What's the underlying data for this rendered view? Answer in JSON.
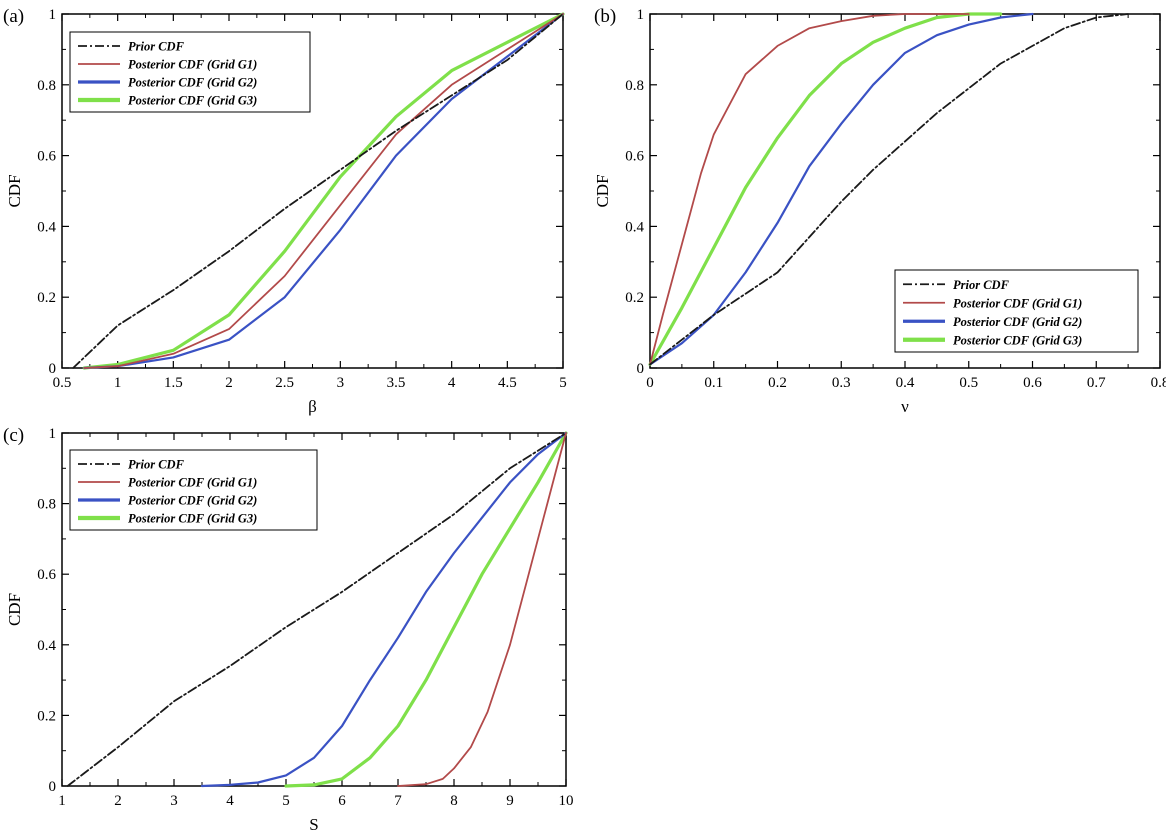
{
  "chart_data": [
    {
      "type": "line",
      "panel_label": "(a)",
      "title": "",
      "xlabel": "β",
      "ylabel": "CDF",
      "xlim": [
        0.5,
        5
      ],
      "ylim": [
        0,
        1
      ],
      "xticks": [
        "0.5",
        "1",
        "1.5",
        "2",
        "2.5",
        "3",
        "3.5",
        "4",
        "4.5",
        "5"
      ],
      "yticks": [
        "0",
        "0.2",
        "0.4",
        "0.6",
        "0.8",
        "1"
      ],
      "grid": false,
      "legend_position": "top-left",
      "series": [
        {
          "name": "Prior CDF",
          "x": [
            0.6,
            1.0,
            1.5,
            2.0,
            2.5,
            3.0,
            3.5,
            4.0,
            4.5,
            5.0
          ],
          "y": [
            0.0,
            0.12,
            0.22,
            0.33,
            0.45,
            0.56,
            0.67,
            0.77,
            0.87,
            1.0
          ]
        },
        {
          "name": "Posterior CDF (Grid G1)",
          "x": [
            0.7,
            1.0,
            1.5,
            2.0,
            2.5,
            3.0,
            3.5,
            4.0,
            4.5,
            5.0
          ],
          "y": [
            0.0,
            0.005,
            0.04,
            0.11,
            0.26,
            0.46,
            0.66,
            0.8,
            0.9,
            1.0
          ]
        },
        {
          "name": "Posterior CDF (Grid G2)",
          "x": [
            0.7,
            1.0,
            1.5,
            2.0,
            2.5,
            3.0,
            3.5,
            4.0,
            4.5,
            5.0
          ],
          "y": [
            0.0,
            0.005,
            0.03,
            0.08,
            0.2,
            0.39,
            0.6,
            0.76,
            0.88,
            1.0
          ]
        },
        {
          "name": "Posterior CDF (Grid G3)",
          "x": [
            0.7,
            1.0,
            1.5,
            2.0,
            2.5,
            3.0,
            3.5,
            4.0,
            4.5,
            5.0
          ],
          "y": [
            0.0,
            0.01,
            0.05,
            0.15,
            0.33,
            0.54,
            0.71,
            0.84,
            0.92,
            1.0
          ]
        }
      ]
    },
    {
      "type": "line",
      "panel_label": "(b)",
      "title": "",
      "xlabel": "ν",
      "ylabel": "CDF",
      "xlim": [
        0,
        0.8
      ],
      "ylim": [
        0,
        1
      ],
      "xticks": [
        "0",
        "0.1",
        "0.2",
        "0.3",
        "0.4",
        "0.5",
        "0.6",
        "0.7",
        "0.8"
      ],
      "yticks": [
        "0",
        "0.2",
        "0.4",
        "0.6",
        "0.8",
        "1"
      ],
      "grid": false,
      "legend_position": "bottom-right",
      "series": [
        {
          "name": "Prior CDF",
          "x": [
            0.0,
            0.05,
            0.1,
            0.15,
            0.2,
            0.25,
            0.3,
            0.35,
            0.4,
            0.45,
            0.5,
            0.55,
            0.6,
            0.65,
            0.7,
            0.75
          ],
          "y": [
            0.01,
            0.08,
            0.15,
            0.21,
            0.27,
            0.37,
            0.47,
            0.56,
            0.64,
            0.72,
            0.79,
            0.86,
            0.91,
            0.96,
            0.99,
            1.0
          ]
        },
        {
          "name": "Posterior CDF (Grid G1)",
          "x": [
            0.0,
            0.02,
            0.05,
            0.08,
            0.1,
            0.15,
            0.2,
            0.25,
            0.3,
            0.35,
            0.4,
            0.45,
            0.5
          ],
          "y": [
            0.01,
            0.15,
            0.35,
            0.55,
            0.66,
            0.83,
            0.91,
            0.96,
            0.98,
            0.995,
            1.0,
            1.0,
            1.0
          ]
        },
        {
          "name": "Posterior CDF (Grid G2)",
          "x": [
            0.0,
            0.05,
            0.1,
            0.15,
            0.2,
            0.25,
            0.3,
            0.35,
            0.4,
            0.45,
            0.5,
            0.55,
            0.6
          ],
          "y": [
            0.01,
            0.07,
            0.15,
            0.27,
            0.41,
            0.57,
            0.69,
            0.8,
            0.89,
            0.94,
            0.97,
            0.99,
            1.0
          ]
        },
        {
          "name": "Posterior CDF (Grid G3)",
          "x": [
            0.0,
            0.05,
            0.1,
            0.15,
            0.2,
            0.25,
            0.3,
            0.35,
            0.4,
            0.45,
            0.5,
            0.55
          ],
          "y": [
            0.01,
            0.17,
            0.34,
            0.51,
            0.65,
            0.77,
            0.86,
            0.92,
            0.96,
            0.99,
            1.0,
            1.0
          ]
        }
      ]
    },
    {
      "type": "line",
      "panel_label": "(c)",
      "title": "",
      "xlabel": "S",
      "ylabel": "CDF",
      "xlim": [
        1,
        10
      ],
      "ylim": [
        0,
        1
      ],
      "xticks": [
        "1",
        "2",
        "3",
        "4",
        "5",
        "6",
        "7",
        "8",
        "9",
        "10"
      ],
      "yticks": [
        "0",
        "0.2",
        "0.4",
        "0.6",
        "0.8",
        "1"
      ],
      "grid": false,
      "legend_position": "top-left",
      "series": [
        {
          "name": "Prior CDF",
          "x": [
            1.1,
            2.0,
            3.0,
            4.0,
            5.0,
            6.0,
            7.0,
            8.0,
            9.0,
            10.0
          ],
          "y": [
            0.0,
            0.11,
            0.24,
            0.34,
            0.45,
            0.55,
            0.66,
            0.77,
            0.9,
            1.0
          ]
        },
        {
          "name": "Posterior CDF (Grid G1)",
          "x": [
            7.0,
            7.5,
            7.8,
            8.0,
            8.3,
            8.6,
            9.0,
            9.3,
            9.6,
            9.8,
            10.0
          ],
          "y": [
            0.0,
            0.005,
            0.02,
            0.05,
            0.11,
            0.21,
            0.4,
            0.58,
            0.76,
            0.88,
            1.0
          ]
        },
        {
          "name": "Posterior CDF (Grid G2)",
          "x": [
            3.5,
            4.0,
            4.5,
            5.0,
            5.5,
            6.0,
            6.5,
            7.0,
            7.5,
            8.0,
            8.5,
            9.0,
            9.5,
            10.0
          ],
          "y": [
            0.0,
            0.003,
            0.01,
            0.03,
            0.08,
            0.17,
            0.3,
            0.42,
            0.55,
            0.66,
            0.76,
            0.86,
            0.94,
            1.0
          ]
        },
        {
          "name": "Posterior CDF (Grid G3)",
          "x": [
            5.0,
            5.5,
            6.0,
            6.5,
            7.0,
            7.5,
            8.0,
            8.5,
            9.0,
            9.5,
            10.0
          ],
          "y": [
            0.0,
            0.003,
            0.02,
            0.08,
            0.17,
            0.3,
            0.45,
            0.6,
            0.73,
            0.86,
            1.0
          ]
        }
      ]
    }
  ],
  "series_colors": [
    "#1a1a1a",
    "#b24a4a",
    "#3a52c4",
    "#7fe04a"
  ]
}
